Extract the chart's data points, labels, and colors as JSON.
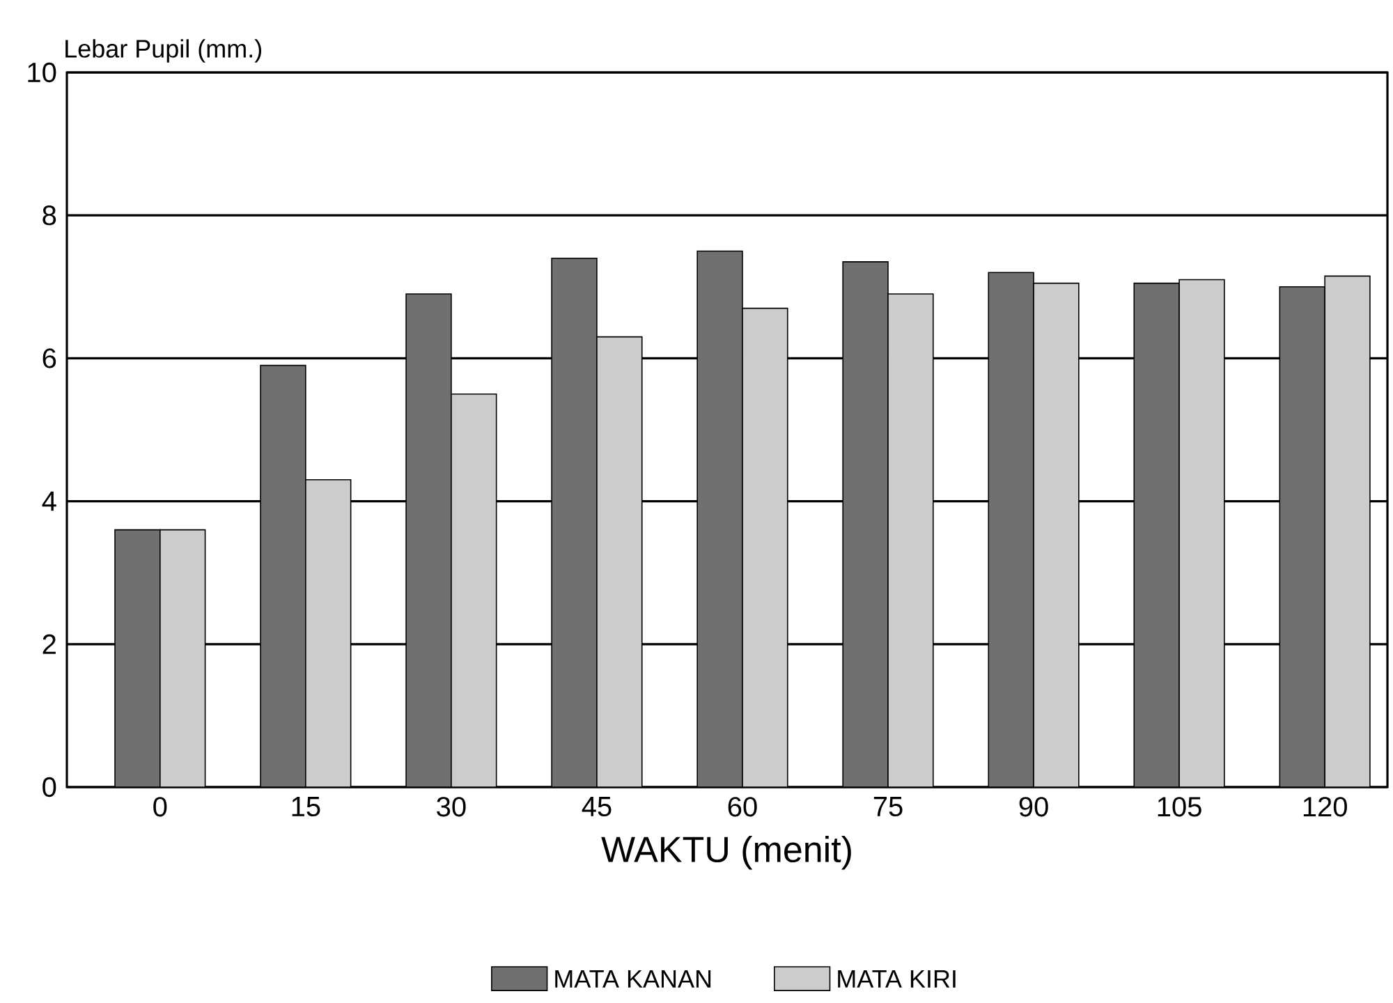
{
  "chart_data": {
    "type": "bar",
    "xlabel": "WAKTU (menit)",
    "ylabel": "Lebar Pupil (mm.)",
    "categories": [
      "0",
      "15",
      "30",
      "45",
      "60",
      "75",
      "90",
      "105",
      "120"
    ],
    "series": [
      {
        "name": "MATA KANAN",
        "color": "#707070",
        "values": [
          3.6,
          5.9,
          6.9,
          7.4,
          7.5,
          7.35,
          7.2,
          7.05,
          7.0
        ]
      },
      {
        "name": "MATA KIRI",
        "color": "#cccccc",
        "values": [
          3.6,
          4.3,
          5.5,
          6.3,
          6.7,
          6.9,
          7.05,
          7.1,
          7.15
        ]
      }
    ],
    "ylim": [
      0,
      10
    ],
    "yticks": [
      0,
      2,
      4,
      6,
      8,
      10
    ],
    "grid": "y",
    "legend": "bottom"
  }
}
